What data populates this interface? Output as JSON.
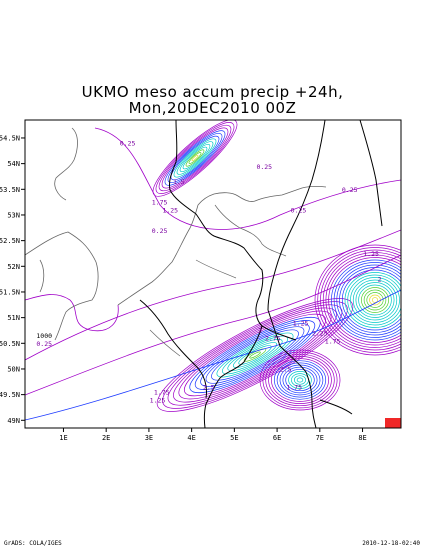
{
  "title": {
    "line1": "UKMO meso accum precip +24h,",
    "line2": "Mon,20DEC2010 00Z"
  },
  "axes": {
    "x_ticks": [
      "1E",
      "2E",
      "3E",
      "4E",
      "5E",
      "6E",
      "7E",
      "8E"
    ],
    "y_ticks": [
      "54.5N",
      "54N",
      "53.5N",
      "53N",
      "52.5N",
      "52N",
      "51.5N",
      "51N",
      "50.5N",
      "50N",
      "49.5N",
      "49N"
    ]
  },
  "contour_labels": [
    {
      "text": "0.25",
      "lon": 2.5,
      "lat": 54.35
    },
    {
      "text": "0.25",
      "lon": 5.7,
      "lat": 53.9
    },
    {
      "text": "0.25",
      "lon": 7.7,
      "lat": 53.45
    },
    {
      "text": "0.25",
      "lon": 6.5,
      "lat": 53.05
    },
    {
      "text": "0.25",
      "lon": 3.25,
      "lat": 52.65
    },
    {
      "text": "0.25",
      "lon": 0.55,
      "lat": 50.45
    },
    {
      "text": "1000",
      "lon": 0.55,
      "lat": 50.6
    },
    {
      "text": "1.75",
      "lon": 3.25,
      "lat": 53.2
    },
    {
      "text": "1.5",
      "lon": 3.7,
      "lat": 53.6
    },
    {
      "text": "1.25",
      "lon": 3.5,
      "lat": 53.05
    },
    {
      "text": "1.75",
      "lon": 3.3,
      "lat": 49.5
    },
    {
      "text": "1.25",
      "lon": 3.2,
      "lat": 49.35
    },
    {
      "text": "2.5",
      "lon": 4.4,
      "lat": 49.6
    },
    {
      "text": "2.25",
      "lon": 7.0,
      "lat": 50.65
    },
    {
      "text": "1.75",
      "lon": 7.3,
      "lat": 50.5
    },
    {
      "text": "1.25",
      "lon": 6.55,
      "lat": 50.85
    },
    {
      "text": "2.75",
      "lon": 5.9,
      "lat": 50.55
    },
    {
      "text": "2.5",
      "lon": 6.2,
      "lat": 49.95
    },
    {
      "text": "1.75",
      "lon": 6.4,
      "lat": 49.6
    },
    {
      "text": "3",
      "lon": 5.6,
      "lat": 50.7
    },
    {
      "text": "1.25",
      "lon": 8.2,
      "lat": 52.2
    },
    {
      "text": "2",
      "lon": 8.4,
      "lat": 51.7
    }
  ],
  "colors": {
    "contour_low": "#a000c8",
    "contour_mid": "#1e3cff",
    "contour_cyan": "#00c8c8",
    "contour_green": "#50d030",
    "contour_yellow": "#e6dc32",
    "contour_high": "#f02828",
    "border": "#000000",
    "coast": "#666666"
  },
  "footer": {
    "left": "GrADS: COLA/IGES",
    "right": "2010-12-18-02:40"
  }
}
